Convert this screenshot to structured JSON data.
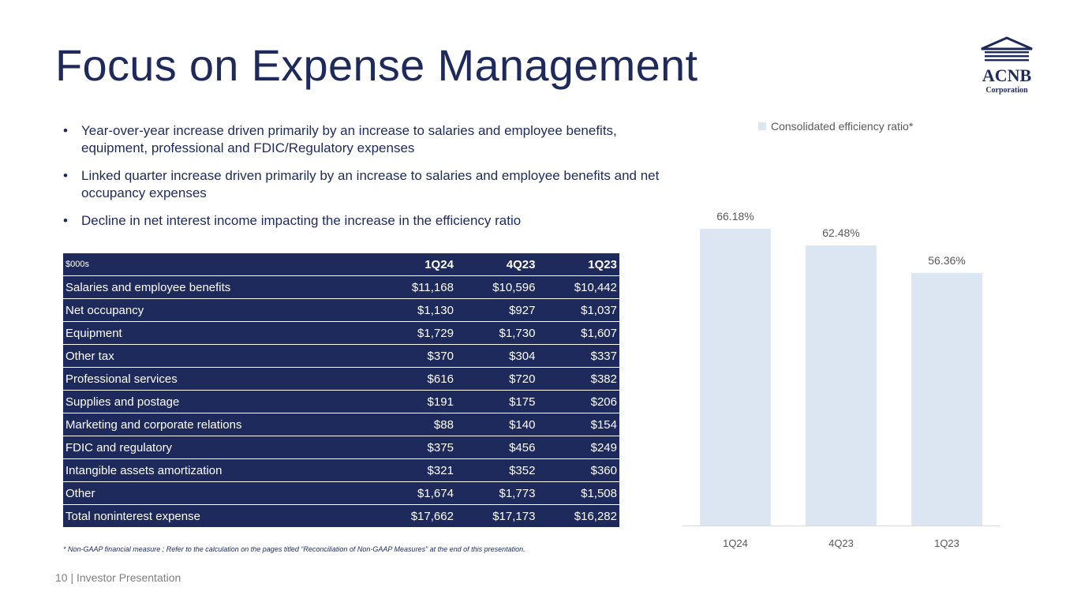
{
  "page": {
    "title": "Focus on Expense Management",
    "page_number": "10",
    "separator": "|",
    "footer_label": "Investor Presentation",
    "footnote": "* Non-GAAP financial measure ; Refer to the calculation on the pages titled “Reconciliation of Non-GAAP Measures” at the end of this presentation."
  },
  "logo": {
    "name": "ACNB",
    "subtitle": "Corporation"
  },
  "bullets": [
    "Year-over-year increase driven primarily by an increase to salaries and employee benefits, equipment, professional and FDIC/Regulatory expenses",
    "Linked quarter increase driven primarily by an increase to salaries and employee benefits and net occupancy expenses",
    "Decline in net interest income impacting the increase in the efficiency ratio"
  ],
  "bullet_glyph": "•",
  "table": {
    "headers": [
      "$000s",
      "1Q24",
      "4Q23",
      "1Q23"
    ],
    "rows": [
      [
        "Salaries and employee benefits",
        "$11,168",
        "$10,596",
        "$10,442"
      ],
      [
        "Net occupancy",
        "$1,130",
        "$927",
        "$1,037"
      ],
      [
        "Equipment",
        "$1,729",
        "$1,730",
        "$1,607"
      ],
      [
        "Other tax",
        "$370",
        "$304",
        "$337"
      ],
      [
        "Professional services",
        "$616",
        "$720",
        "$382"
      ],
      [
        "Supplies and postage",
        "$191",
        "$175",
        "$206"
      ],
      [
        "Marketing and corporate relations",
        "$88",
        "$140",
        "$154"
      ],
      [
        "FDIC and regulatory",
        "$375",
        "$456",
        "$249"
      ],
      [
        "Intangible assets amortization",
        "$321",
        "$352",
        "$360"
      ],
      [
        "Other",
        "$1,674",
        "$1,773",
        "$1,508"
      ],
      [
        "Total noninterest expense",
        "$17,662",
        "$17,173",
        "$16,282"
      ]
    ]
  },
  "chart_data": {
    "type": "bar",
    "title": "",
    "categories": [
      "1Q24",
      "4Q23",
      "1Q23"
    ],
    "series": [
      {
        "name": "Consolidated efficiency ratio*",
        "values": [
          66.18,
          62.48,
          56.36
        ]
      }
    ],
    "data_labels": [
      "66.18%",
      "62.48%",
      "56.36%"
    ],
    "xlabel": "",
    "ylabel": "",
    "ylim": [
      0,
      70
    ],
    "grid": false,
    "legend": "top-center",
    "colors": {
      "bar": "#dce6f2",
      "label": "#595959",
      "axis_label": "#595959",
      "baseline": "#d9d9d9"
    }
  },
  "colors": {
    "navy": "#1f2a5c",
    "gray": "#7f7f7f"
  }
}
